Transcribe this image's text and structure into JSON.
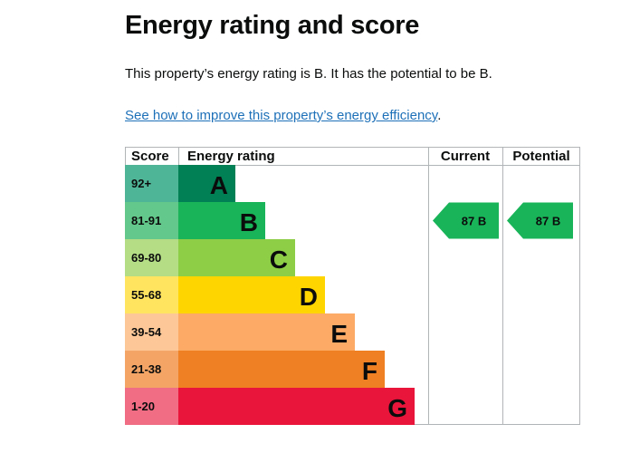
{
  "title": "Energy rating and score",
  "summary": "This property’s energy rating is B. It has the potential to be B.",
  "improve_link": "See how to improve this property’s energy efficiency",
  "improve_period": ".",
  "chart_data": {
    "type": "bar",
    "headers": {
      "score": "Score",
      "rating": "Energy rating",
      "current": "Current",
      "potential": "Potential"
    },
    "bands": [
      {
        "letter": "A",
        "range": "92+",
        "color": "#008054",
        "score_bg": "#4fb597"
      },
      {
        "letter": "B",
        "range": "81-91",
        "color": "#19b459",
        "score_bg": "#63c88b"
      },
      {
        "letter": "C",
        "range": "69-80",
        "color": "#8dce46",
        "score_bg": "#b4dd85"
      },
      {
        "letter": "D",
        "range": "55-68",
        "color": "#ffd500",
        "score_bg": "#ffe460"
      },
      {
        "letter": "E",
        "range": "39-54",
        "color": "#fcaa65",
        "score_bg": "#fdc797"
      },
      {
        "letter": "F",
        "range": "21-38",
        "color": "#ef8023",
        "score_bg": "#f4a566"
      },
      {
        "letter": "G",
        "range": "1-20",
        "color": "#e9153b",
        "score_bg": "#f06d84"
      }
    ],
    "current": {
      "score": 87,
      "letter": "B",
      "label": "87 B",
      "color": "#19b459"
    },
    "potential": {
      "score": 87,
      "letter": "B",
      "label": "87 B",
      "color": "#19b459"
    }
  }
}
